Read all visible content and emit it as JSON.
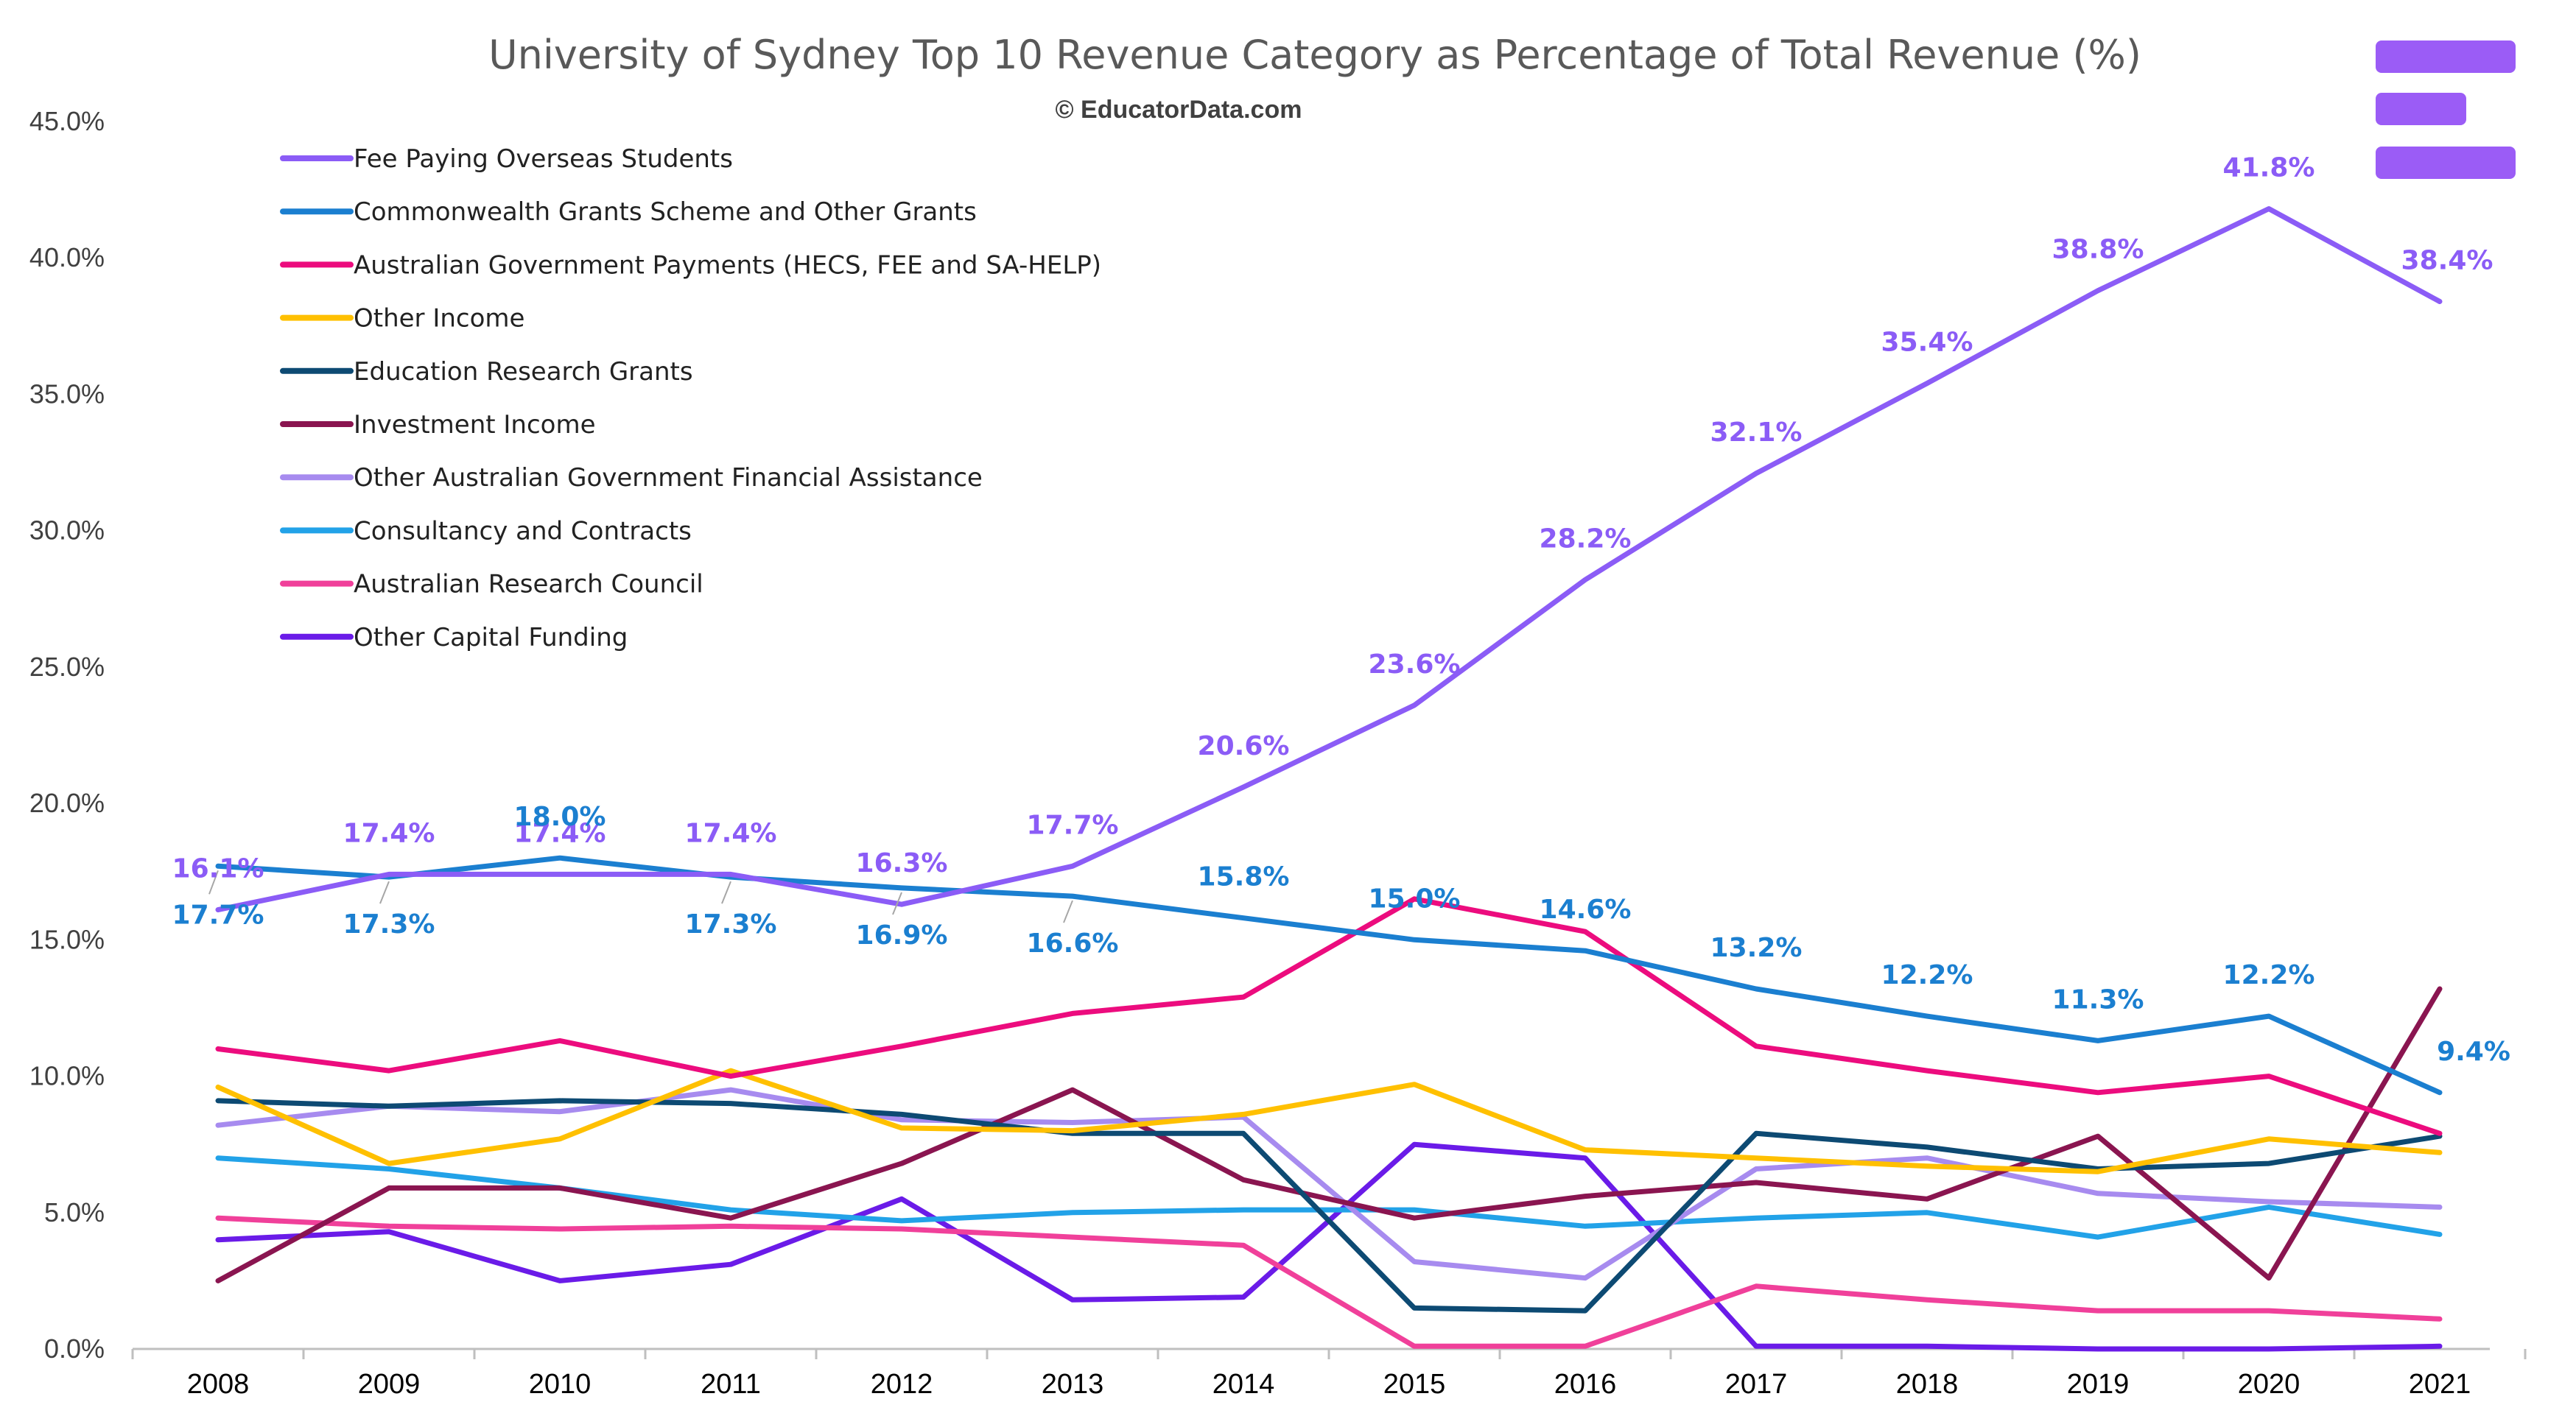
{
  "chart_data": {
    "type": "line",
    "title": "University of Sydney Top 10 Revenue Category as Percentage of Total Revenue (%)",
    "subtitle": "© EducatorData.com",
    "xlabel": "",
    "ylabel": "",
    "ylim": [
      0,
      45
    ],
    "ytick_values": [
      0,
      5,
      10,
      15,
      20,
      25,
      30,
      35,
      40,
      45
    ],
    "ytick_labels": [
      "0.0%",
      "5.0%",
      "10.0%",
      "15.0%",
      "20.0%",
      "25.0%",
      "30.0%",
      "35.0%",
      "40.0%",
      "45.0%"
    ],
    "categories": [
      "2008",
      "2009",
      "2010",
      "2011",
      "2012",
      "2013",
      "2014",
      "2015",
      "2016",
      "2017",
      "2018",
      "2019",
      "2020",
      "2021"
    ],
    "grid": false,
    "legend_position": "top-left",
    "series": [
      {
        "name": "Fee Paying Overseas Students",
        "color": "#8B5CF6",
        "values": [
          16.1,
          17.4,
          17.4,
          17.4,
          16.3,
          17.7,
          20.6,
          23.6,
          28.2,
          32.1,
          35.4,
          38.8,
          41.8,
          38.4
        ],
        "labels": [
          "16.1%",
          "17.4%",
          "17.4%",
          "17.4%",
          "16.3%",
          "17.7%",
          "20.6%",
          "23.6%",
          "28.2%",
          "32.1%",
          "35.4%",
          "38.8%",
          "41.8%",
          "38.4%"
        ]
      },
      {
        "name": "Commonwealth Grants Scheme and Other Grants",
        "color": "#1B7FD0",
        "values": [
          17.7,
          17.3,
          18.0,
          17.3,
          16.9,
          16.6,
          15.8,
          15.0,
          14.6,
          13.2,
          12.2,
          11.3,
          12.2,
          9.4
        ],
        "labels": [
          "17.7%",
          "17.3%",
          "18.0%",
          "17.3%",
          "16.9%",
          "16.6%",
          "15.8%",
          "15.0%",
          "14.6%",
          "13.2%",
          "12.2%",
          "11.3%",
          "12.2%",
          "9.4%"
        ]
      },
      {
        "name": "Australian Government Payments (HECS, FEE and SA-HELP)",
        "color": "#EC0C7E",
        "values": [
          11.0,
          10.2,
          11.3,
          10.0,
          11.1,
          12.3,
          12.9,
          16.5,
          15.3,
          11.1,
          10.2,
          9.4,
          10.0,
          7.9
        ]
      },
      {
        "name": "Other Income",
        "color": "#FFC000",
        "values": [
          9.6,
          6.8,
          7.7,
          10.2,
          8.1,
          8.0,
          8.6,
          9.7,
          7.3,
          7.0,
          6.7,
          6.5,
          7.7,
          7.2
        ]
      },
      {
        "name": "Education Research Grants",
        "color": "#0D4A73",
        "values": [
          9.1,
          8.9,
          9.1,
          9.0,
          8.6,
          7.9,
          7.9,
          1.5,
          1.4,
          7.9,
          7.4,
          6.6,
          6.8,
          7.8
        ]
      },
      {
        "name": "Investment Income",
        "color": "#8A1550",
        "values": [
          2.5,
          5.9,
          5.9,
          4.8,
          6.8,
          9.5,
          6.2,
          4.8,
          5.6,
          6.1,
          5.5,
          7.8,
          2.6,
          13.2
        ]
      },
      {
        "name": "Other Australian Government Financial Assistance",
        "color": "#A78BEF",
        "values": [
          8.2,
          8.9,
          8.7,
          9.5,
          8.4,
          8.3,
          8.5,
          3.2,
          2.6,
          6.6,
          7.0,
          5.7,
          5.4,
          5.2
        ]
      },
      {
        "name": "Consultancy and Contracts",
        "color": "#22A2E8",
        "values": [
          7.0,
          6.6,
          5.9,
          5.1,
          4.7,
          5.0,
          5.1,
          5.1,
          4.5,
          4.8,
          5.0,
          4.1,
          5.2,
          4.2
        ]
      },
      {
        "name": "Australian Research Council",
        "color": "#F0409A",
        "values": [
          4.8,
          4.5,
          4.4,
          4.5,
          4.4,
          4.1,
          3.8,
          0.1,
          0.1,
          2.3,
          1.8,
          1.4,
          1.4,
          1.1
        ]
      },
      {
        "name": "Other Capital Funding",
        "color": "#6A1BE8",
        "values": [
          4.0,
          4.3,
          2.5,
          3.1,
          5.5,
          1.8,
          1.9,
          7.5,
          7.0,
          0.1,
          0.1,
          0.0,
          0.0,
          0.1
        ]
      }
    ]
  },
  "logo": {
    "color": "#9B5CF6",
    "name": "educatordata-logo-icon"
  }
}
